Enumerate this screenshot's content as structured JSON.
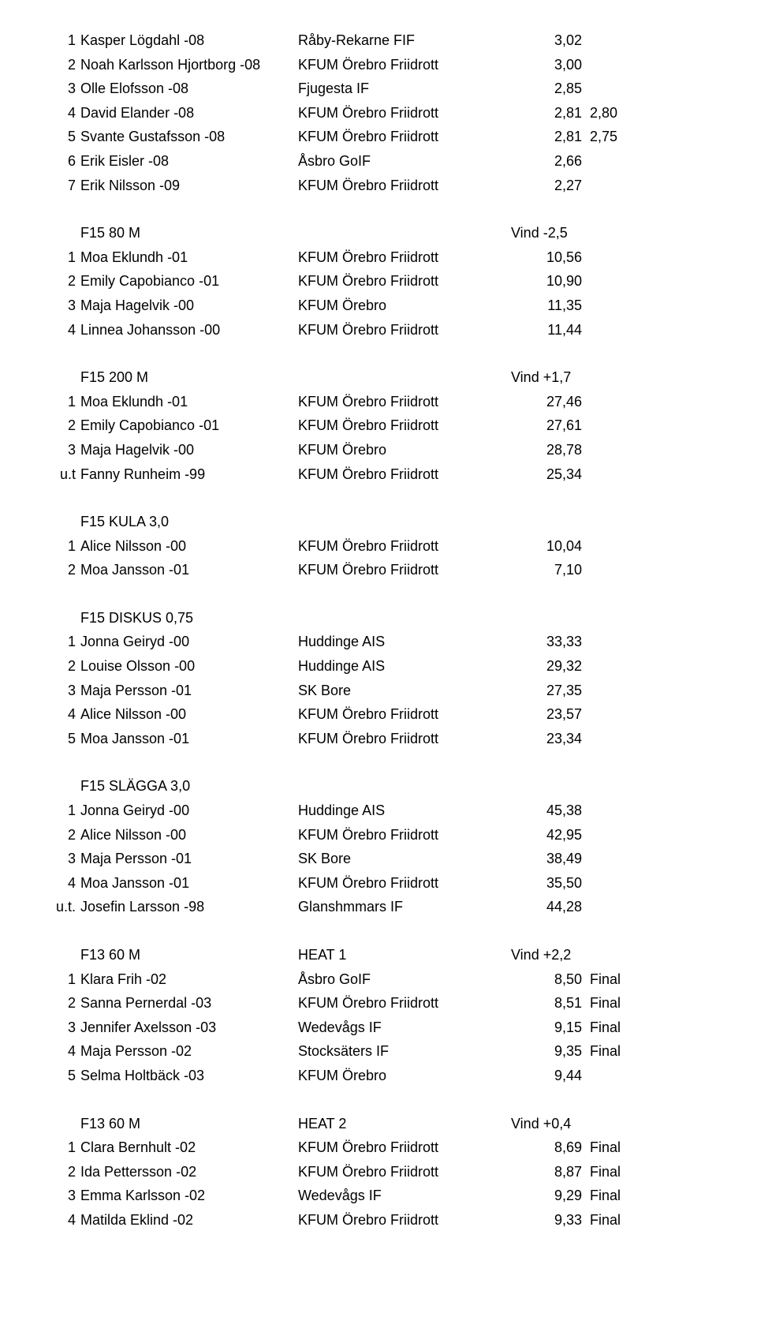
{
  "sections": [
    {
      "heading": null,
      "rows": [
        {
          "p": "1",
          "name": "Kasper Lögdahl -08",
          "club": "Råby-Rekarne FIF",
          "res": "3,02",
          "note": ""
        },
        {
          "p": "2",
          "name": "Noah Karlsson Hjortborg -08",
          "club": "KFUM Örebro Friidrott",
          "res": "3,00",
          "note": ""
        },
        {
          "p": "3",
          "name": "Olle Elofsson -08",
          "club": "Fjugesta IF",
          "res": "2,85",
          "note": ""
        },
        {
          "p": "4",
          "name": "David Elander -08",
          "club": "KFUM Örebro Friidrott",
          "res": "2,81",
          "note": "2,80"
        },
        {
          "p": "5",
          "name": "Svante Gustafsson -08",
          "club": "KFUM Örebro Friidrott",
          "res": "2,81",
          "note": "2,75"
        },
        {
          "p": "6",
          "name": "Erik Eisler -08",
          "club": "Åsbro GoIF",
          "res": "2,66",
          "note": ""
        },
        {
          "p": "7",
          "name": "Erik Nilsson -09",
          "club": "KFUM Örebro Friidrott",
          "res": "2,27",
          "note": ""
        }
      ]
    },
    {
      "heading": {
        "event": "F15 80 M",
        "heat": "",
        "wind": "Vind -2,5"
      },
      "rows": [
        {
          "p": "1",
          "name": "Moa Eklundh -01",
          "club": "KFUM Örebro Friidrott",
          "res": "10,56",
          "note": ""
        },
        {
          "p": "2",
          "name": "Emily Capobianco -01",
          "club": "KFUM Örebro Friidrott",
          "res": "10,90",
          "note": ""
        },
        {
          "p": "3",
          "name": "Maja Hagelvik -00",
          "club": "KFUM Örebro",
          "res": "11,35",
          "note": ""
        },
        {
          "p": "4",
          "name": "Linnea Johansson -00",
          "club": "KFUM Örebro Friidrott",
          "res": "11,44",
          "note": ""
        }
      ]
    },
    {
      "heading": {
        "event": "F15 200 M",
        "heat": "",
        "wind": "Vind +1,7"
      },
      "rows": [
        {
          "p": "1",
          "name": "Moa Eklundh -01",
          "club": "KFUM Örebro Friidrott",
          "res": "27,46",
          "note": ""
        },
        {
          "p": "2",
          "name": "Emily Capobianco -01",
          "club": "KFUM Örebro Friidrott",
          "res": "27,61",
          "note": ""
        },
        {
          "p": "3",
          "name": "Maja Hagelvik -00",
          "club": "KFUM Örebro",
          "res": "28,78",
          "note": ""
        },
        {
          "p": "u.t",
          "name": "Fanny Runheim -99",
          "club": "KFUM Örebro Friidrott",
          "res": "25,34",
          "note": ""
        }
      ]
    },
    {
      "heading": {
        "event": "F15 KULA 3,0",
        "heat": "",
        "wind": ""
      },
      "rows": [
        {
          "p": "1",
          "name": "Alice Nilsson -00",
          "club": "KFUM Örebro Friidrott",
          "res": "10,04",
          "note": ""
        },
        {
          "p": "2",
          "name": "Moa Jansson -01",
          "club": "KFUM Örebro Friidrott",
          "res": "7,10",
          "note": ""
        }
      ]
    },
    {
      "heading": {
        "event": "F15 DISKUS 0,75",
        "heat": "",
        "wind": ""
      },
      "rows": [
        {
          "p": "1",
          "name": "Jonna Geiryd -00",
          "club": "Huddinge AIS",
          "res": "33,33",
          "note": ""
        },
        {
          "p": "2",
          "name": "Louise Olsson -00",
          "club": "Huddinge AIS",
          "res": "29,32",
          "note": ""
        },
        {
          "p": "3",
          "name": "Maja Persson -01",
          "club": "SK Bore",
          "res": "27,35",
          "note": ""
        },
        {
          "p": "4",
          "name": "Alice Nilsson -00",
          "club": "KFUM Örebro Friidrott",
          "res": "23,57",
          "note": ""
        },
        {
          "p": "5",
          "name": "Moa Jansson -01",
          "club": "KFUM Örebro Friidrott",
          "res": "23,34",
          "note": ""
        }
      ]
    },
    {
      "heading": {
        "event": "F15 SLÄGGA 3,0",
        "heat": "",
        "wind": ""
      },
      "rows": [
        {
          "p": "1",
          "name": "Jonna Geiryd -00",
          "club": "Huddinge AIS",
          "res": "45,38",
          "note": ""
        },
        {
          "p": "2",
          "name": "Alice Nilsson -00",
          "club": "KFUM Örebro Friidrott",
          "res": "42,95",
          "note": ""
        },
        {
          "p": "3",
          "name": "Maja Persson -01",
          "club": "SK Bore",
          "res": "38,49",
          "note": ""
        },
        {
          "p": "4",
          "name": "Moa Jansson -01",
          "club": "KFUM Örebro Friidrott",
          "res": "35,50",
          "note": ""
        },
        {
          "p": "u.t.",
          "name": "Josefin Larsson -98",
          "club": "Glanshmmars IF",
          "res": "44,28",
          "note": ""
        }
      ]
    },
    {
      "heading": {
        "event": "F13 60 M",
        "heat": "HEAT 1",
        "wind": "Vind +2,2"
      },
      "rows": [
        {
          "p": "1",
          "name": "Klara Frih -02",
          "club": "Åsbro GoIF",
          "res": "8,50",
          "note": "Final"
        },
        {
          "p": "2",
          "name": "Sanna Pernerdal -03",
          "club": "KFUM Örebro Friidrott",
          "res": "8,51",
          "note": "Final"
        },
        {
          "p": "3",
          "name": "Jennifer Axelsson -03",
          "club": "Wedevågs IF",
          "res": "9,15",
          "note": "Final"
        },
        {
          "p": "4",
          "name": "Maja Persson -02",
          "club": "Stocksäters IF",
          "res": "9,35",
          "note": "Final"
        },
        {
          "p": "5",
          "name": "Selma Holtbäck -03",
          "club": "KFUM Örebro",
          "res": "9,44",
          "note": ""
        }
      ]
    },
    {
      "heading": {
        "event": "F13 60 M",
        "heat": "HEAT 2",
        "wind": "Vind +0,4"
      },
      "rows": [
        {
          "p": "1",
          "name": "Clara Bernhult -02",
          "club": "KFUM Örebro Friidrott",
          "res": "8,69",
          "note": "Final"
        },
        {
          "p": "2",
          "name": "Ida Pettersson -02",
          "club": "KFUM Örebro Friidrott",
          "res": "8,87",
          "note": "Final"
        },
        {
          "p": "3",
          "name": "Emma Karlsson -02",
          "club": "Wedevågs IF",
          "res": "9,29",
          "note": "Final"
        },
        {
          "p": "4",
          "name": "Matilda Eklind -02",
          "club": "KFUM Örebro Friidrott",
          "res": "9,33",
          "note": "Final"
        }
      ]
    }
  ]
}
